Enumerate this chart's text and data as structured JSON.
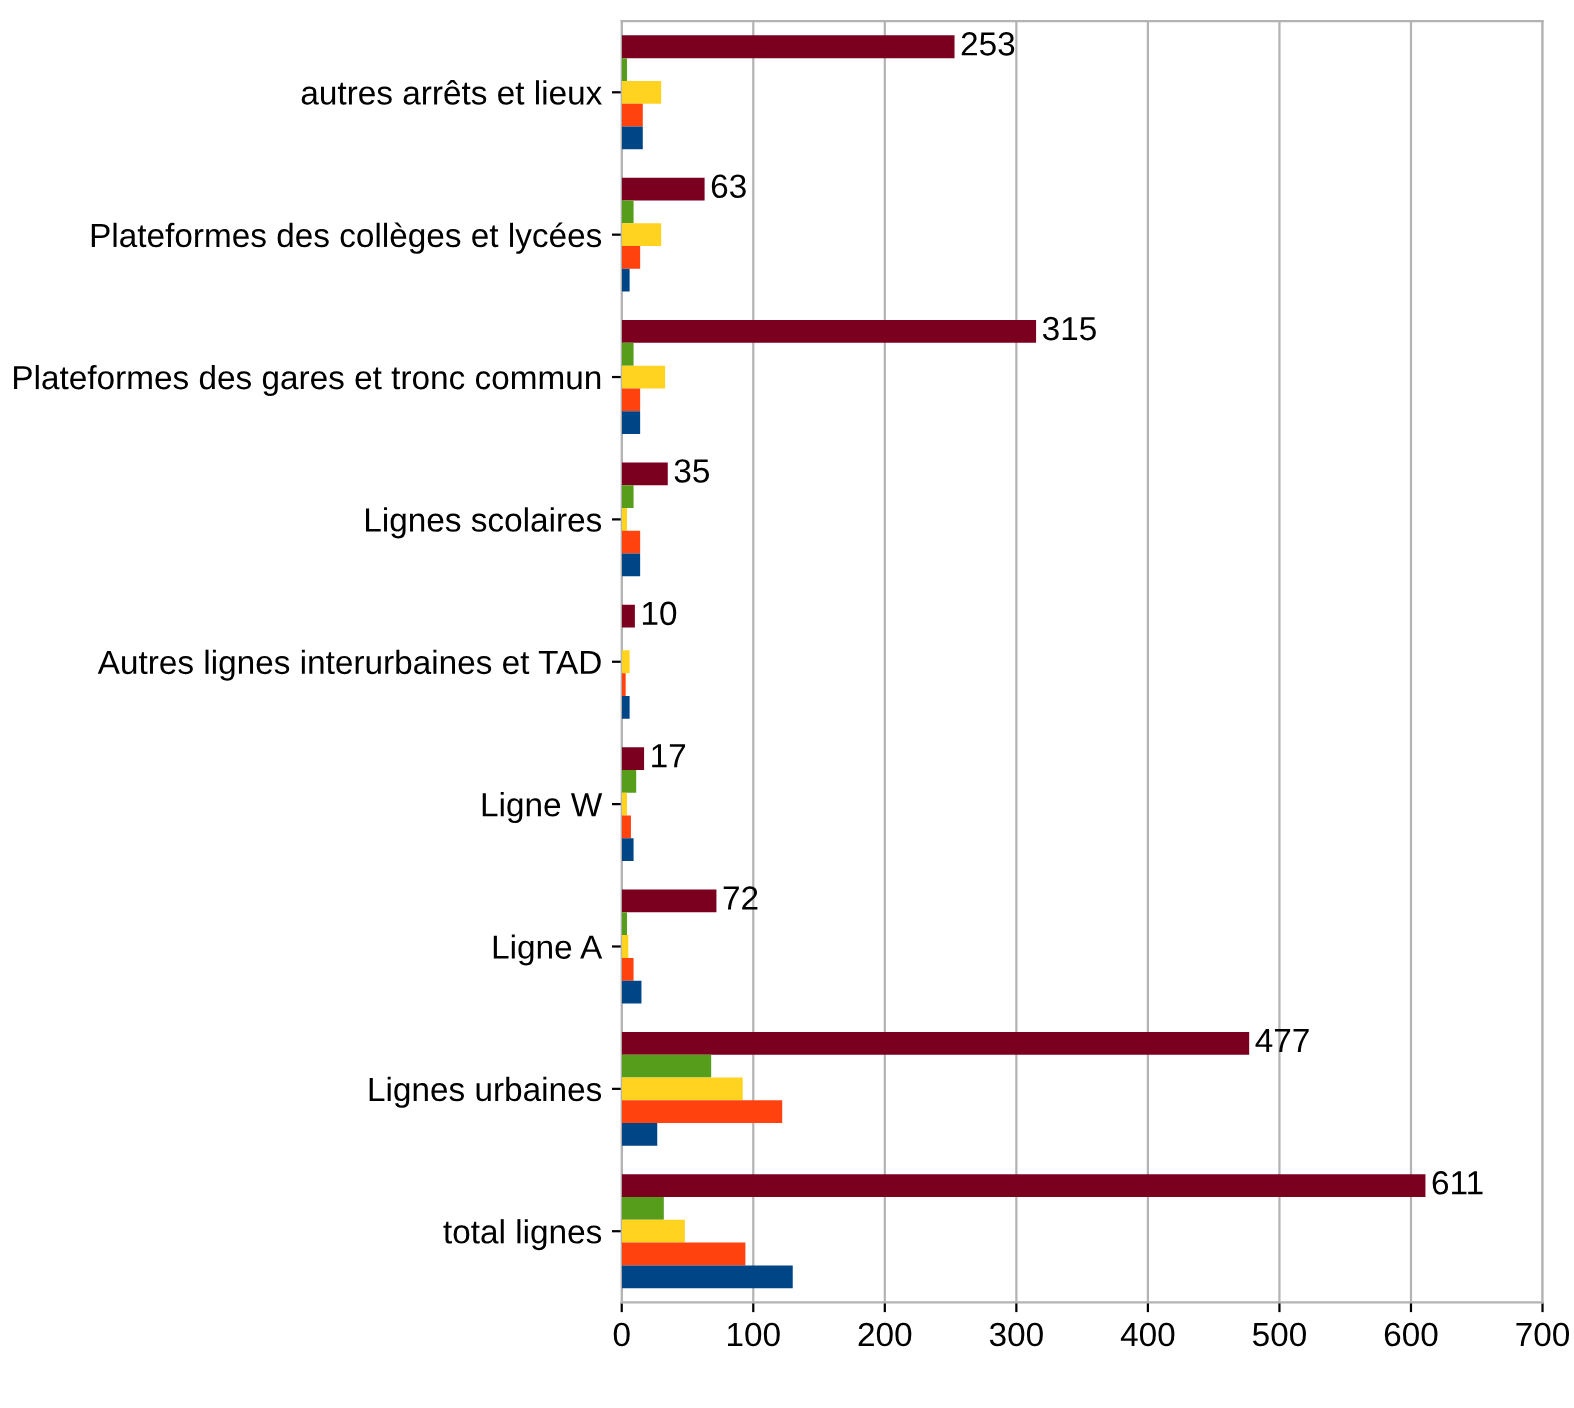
{
  "chart_data": {
    "type": "bar",
    "orientation": "horizontal",
    "categories": [
      "autres arrêts et lieux",
      "Plateformes des collèges et lycées",
      "Plateformes des gares et tronc commun",
      "Lignes scolaires",
      "Autres lignes interurbaines et TAD",
      "Ligne W",
      "Ligne A",
      "Lignes urbaines",
      "total lignes"
    ],
    "series": [
      {
        "color": "#7b0020",
        "values": [
          253,
          63,
          315,
          35,
          10,
          17,
          72,
          477,
          611
        ],
        "value_labels": [
          "253",
          "63",
          "315",
          "35",
          "10",
          "17",
          "72",
          "477",
          "611"
        ]
      },
      {
        "color": "#579d1c",
        "values": [
          4,
          9,
          9,
          9,
          0,
          11,
          4,
          68,
          32
        ]
      },
      {
        "color": "#ffd320",
        "values": [
          30,
          30,
          33,
          4,
          6,
          4,
          5,
          92,
          48
        ]
      },
      {
        "color": "#ff420e",
        "values": [
          16,
          14,
          14,
          14,
          3,
          7,
          9,
          122,
          94
        ]
      },
      {
        "color": "#004586",
        "values": [
          16,
          6,
          14,
          14,
          6,
          9,
          15,
          27,
          130
        ]
      }
    ],
    "xlim": [
      0,
      700
    ],
    "xticks": [
      0,
      100,
      200,
      300,
      400,
      500,
      600,
      700
    ],
    "grid": "x",
    "legend": false
  }
}
